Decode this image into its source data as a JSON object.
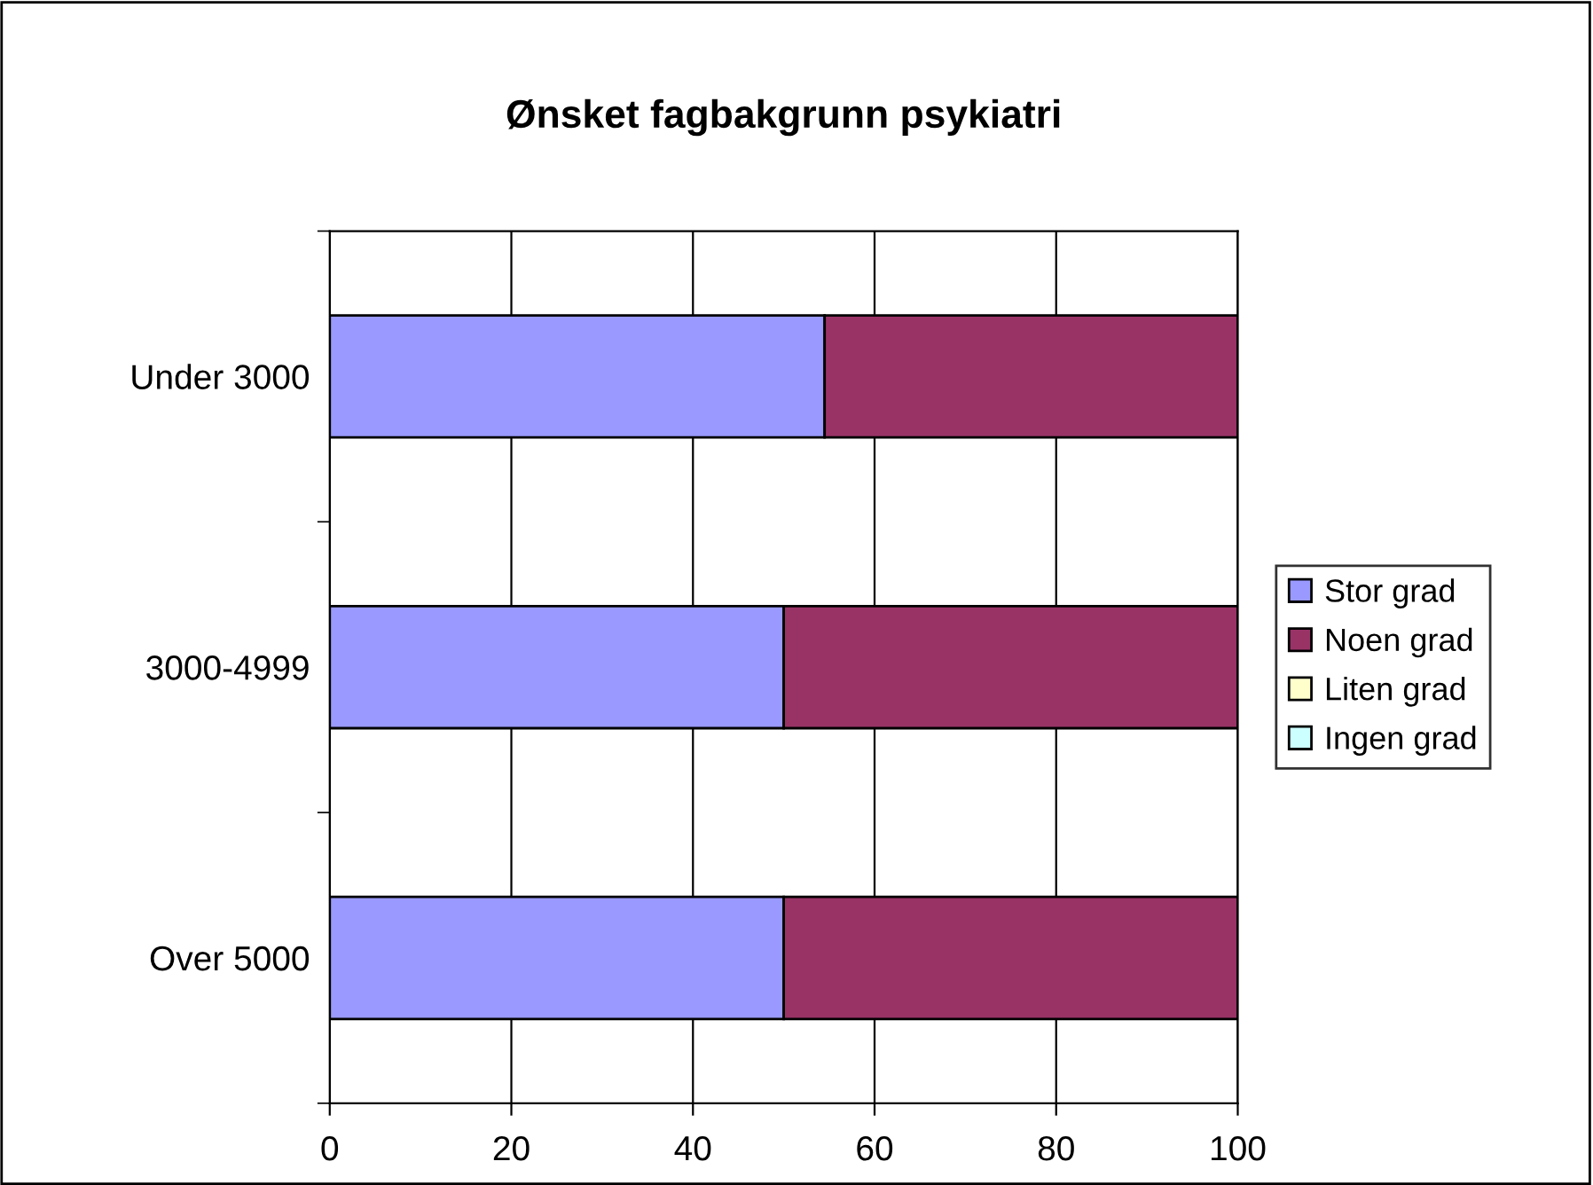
{
  "chart_data": {
    "type": "bar",
    "orientation": "horizontal",
    "stacked": true,
    "title": "Ønsket fagbakgrunn psykiatri",
    "categories": [
      "Under 3000",
      "3000-4999",
      "Over 5000"
    ],
    "series": [
      {
        "name": "Stor grad",
        "color": "#9999ff",
        "values": [
          54.5,
          50,
          50
        ]
      },
      {
        "name": "Noen grad",
        "color": "#993366",
        "values": [
          45.5,
          50,
          50
        ]
      },
      {
        "name": "Liten grad",
        "color": "#ffffcc",
        "values": [
          0,
          0,
          0
        ]
      },
      {
        "name": "Ingen grad",
        "color": "#ccffff",
        "values": [
          0,
          0,
          0
        ]
      }
    ],
    "xlim": [
      0,
      100
    ],
    "xticks": [
      0,
      20,
      40,
      60,
      80,
      100
    ],
    "grid": "x",
    "legend": "right"
  }
}
